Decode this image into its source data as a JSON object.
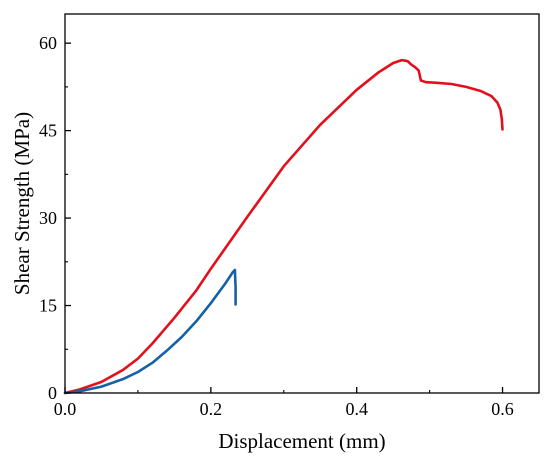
{
  "chart_data": {
    "type": "line",
    "xlabel": "Displacement (mm)",
    "ylabel": "Shear Strength (MPa)",
    "xlim": [
      0,
      0.65
    ],
    "ylim": [
      0,
      65
    ],
    "x_ticks": [
      0.0,
      0.2,
      0.4,
      0.6
    ],
    "x_tick_labels": [
      "0.0",
      "0.2",
      "0.4",
      "0.6"
    ],
    "y_ticks": [
      0,
      15,
      30,
      45,
      60
    ],
    "y_tick_labels": [
      "0",
      "15",
      "30",
      "45",
      "60"
    ],
    "grid": false,
    "legend": "none",
    "series": [
      {
        "color": "#e3101b",
        "points": [
          [
            0.0,
            0.0
          ],
          [
            0.02,
            0.6
          ],
          [
            0.05,
            1.9
          ],
          [
            0.08,
            4.0
          ],
          [
            0.1,
            5.9
          ],
          [
            0.12,
            8.5
          ],
          [
            0.15,
            12.9
          ],
          [
            0.18,
            17.6
          ],
          [
            0.2,
            21.3
          ],
          [
            0.25,
            30.2
          ],
          [
            0.3,
            38.9
          ],
          [
            0.35,
            46.0
          ],
          [
            0.4,
            52.0
          ],
          [
            0.43,
            55.0
          ],
          [
            0.45,
            56.6
          ],
          [
            0.462,
            57.1
          ],
          [
            0.47,
            56.9
          ],
          [
            0.475,
            56.3
          ],
          [
            0.48,
            55.9
          ],
          [
            0.485,
            55.3
          ],
          [
            0.488,
            53.6
          ],
          [
            0.495,
            53.3
          ],
          [
            0.51,
            53.2
          ],
          [
            0.53,
            53.0
          ],
          [
            0.55,
            52.5
          ],
          [
            0.57,
            51.8
          ],
          [
            0.585,
            50.9
          ],
          [
            0.593,
            49.8
          ],
          [
            0.597,
            48.6
          ],
          [
            0.599,
            47.0
          ],
          [
            0.6,
            45.2
          ]
        ]
      },
      {
        "color": "#1560a9",
        "points": [
          [
            0.0,
            0.0
          ],
          [
            0.02,
            0.3
          ],
          [
            0.05,
            1.1
          ],
          [
            0.08,
            2.4
          ],
          [
            0.1,
            3.6
          ],
          [
            0.12,
            5.2
          ],
          [
            0.14,
            7.3
          ],
          [
            0.16,
            9.6
          ],
          [
            0.18,
            12.3
          ],
          [
            0.2,
            15.4
          ],
          [
            0.22,
            18.8
          ],
          [
            0.23,
            20.7
          ],
          [
            0.233,
            21.1
          ],
          [
            0.234,
            18.0
          ],
          [
            0.234,
            15.2
          ]
        ]
      }
    ]
  }
}
